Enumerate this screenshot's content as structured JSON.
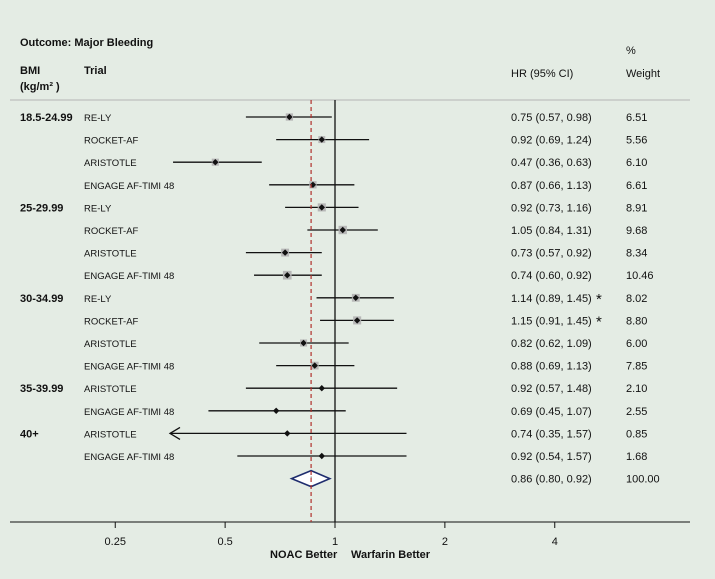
{
  "chart_data": {
    "type": "forest",
    "outcome_label": "Outcome: Major Bleeding",
    "col_bmi": "BMI",
    "col_bmi_unit": "(kg/m² )",
    "col_trial": "Trial",
    "col_hr": "HR (95% CI)",
    "col_weight_pct": "%",
    "col_weight": "Weight",
    "xaxis": {
      "scale": "log",
      "ticks": [
        "0.25",
        "0.5",
        "1",
        "2",
        "4"
      ],
      "tick_values": [
        0.25,
        0.5,
        1,
        2,
        4
      ],
      "xlim": [
        0.16,
        6.5
      ],
      "reference_line": 1,
      "overall_line": 0.86,
      "left_label": "NOAC Better",
      "right_label": "Warfarin Better"
    },
    "rows": [
      {
        "group": "18.5-24.99",
        "trial": "RE-LY",
        "hr": 0.75,
        "lo": 0.57,
        "hi": 0.98,
        "ci": "0.75 (0.57, 0.98)",
        "weight": "6.51",
        "box": true,
        "mark": ""
      },
      {
        "group": "",
        "trial": "ROCKET-AF",
        "hr": 0.92,
        "lo": 0.69,
        "hi": 1.24,
        "ci": "0.92 (0.69, 1.24)",
        "weight": "5.56",
        "box": true,
        "mark": ""
      },
      {
        "group": "",
        "trial": "ARISTOTLE",
        "hr": 0.47,
        "lo": 0.36,
        "hi": 0.63,
        "ci": "0.47 (0.36, 0.63)",
        "weight": "6.10",
        "box": true,
        "mark": ""
      },
      {
        "group": "",
        "trial": "ENGAGE AF-TIMI 48",
        "hr": 0.87,
        "lo": 0.66,
        "hi": 1.13,
        "ci": "0.87 (0.66, 1.13)",
        "weight": "6.61",
        "box": true,
        "mark": ""
      },
      {
        "group": "25-29.99",
        "trial": "RE-LY",
        "hr": 0.92,
        "lo": 0.73,
        "hi": 1.16,
        "ci": "0.92 (0.73, 1.16)",
        "weight": "8.91",
        "box": true,
        "mark": ""
      },
      {
        "group": "",
        "trial": "ROCKET-AF",
        "hr": 1.05,
        "lo": 0.84,
        "hi": 1.31,
        "ci": "1.05 (0.84, 1.31)",
        "weight": "9.68",
        "box": true,
        "mark": ""
      },
      {
        "group": "",
        "trial": "ARISTOTLE",
        "hr": 0.73,
        "lo": 0.57,
        "hi": 0.92,
        "ci": "0.73 (0.57, 0.92)",
        "weight": "8.34",
        "box": true,
        "mark": ""
      },
      {
        "group": "",
        "trial": "ENGAGE AF-TIMI 48",
        "hr": 0.74,
        "lo": 0.6,
        "hi": 0.92,
        "ci": "0.74 (0.60, 0.92)",
        "weight": "10.46",
        "box": true,
        "mark": ""
      },
      {
        "group": "30-34.99",
        "trial": "RE-LY",
        "hr": 1.14,
        "lo": 0.89,
        "hi": 1.45,
        "ci": "1.14 (0.89, 1.45)",
        "weight": "8.02",
        "box": true,
        "mark": "*"
      },
      {
        "group": "",
        "trial": "ROCKET-AF",
        "hr": 1.15,
        "lo": 0.91,
        "hi": 1.45,
        "ci": "1.15 (0.91, 1.45)",
        "weight": "8.80",
        "box": true,
        "mark": "*"
      },
      {
        "group": "",
        "trial": "ARISTOTLE",
        "hr": 0.82,
        "lo": 0.62,
        "hi": 1.09,
        "ci": "0.82 (0.62, 1.09)",
        "weight": "6.00",
        "box": true,
        "mark": ""
      },
      {
        "group": "",
        "trial": "ENGAGE AF-TIMI 48",
        "hr": 0.88,
        "lo": 0.69,
        "hi": 1.13,
        "ci": "0.88 (0.69, 1.13)",
        "weight": "7.85",
        "box": true,
        "mark": ""
      },
      {
        "group": "35-39.99",
        "trial": "ARISTOTLE",
        "hr": 0.92,
        "lo": 0.57,
        "hi": 1.48,
        "ci": "0.92 (0.57, 1.48)",
        "weight": "2.10",
        "box": false,
        "mark": ""
      },
      {
        "group": "",
        "trial": "ENGAGE AF-TIMI 48",
        "hr": 0.69,
        "lo": 0.45,
        "hi": 1.07,
        "ci": "0.69 (0.45, 1.07)",
        "weight": "2.55",
        "box": false,
        "mark": ""
      },
      {
        "group": "40+",
        "trial": "ARISTOTLE",
        "hr": 0.74,
        "lo": 0.35,
        "hi": 1.57,
        "ci": "0.74 (0.35, 1.57)",
        "weight": "0.85",
        "box": false,
        "mark": "",
        "arrow_left": true
      },
      {
        "group": "",
        "trial": "ENGAGE AF-TIMI 48",
        "hr": 0.92,
        "lo": 0.54,
        "hi": 1.57,
        "ci": "0.92 (0.54, 1.57)",
        "weight": "1.68",
        "box": false,
        "mark": ""
      }
    ],
    "overall": {
      "hr": 0.86,
      "lo": 0.8,
      "hi": 0.92,
      "ci": "0.86 (0.80, 0.92)",
      "weight": "100.00",
      "diamond_label": "I"
    },
    "colors": {
      "background": "#e4ece4",
      "box": "#b7b7b7",
      "diamond": "#1f2d6e",
      "overall_line": "#b0302c",
      "ink": "#111111"
    }
  }
}
